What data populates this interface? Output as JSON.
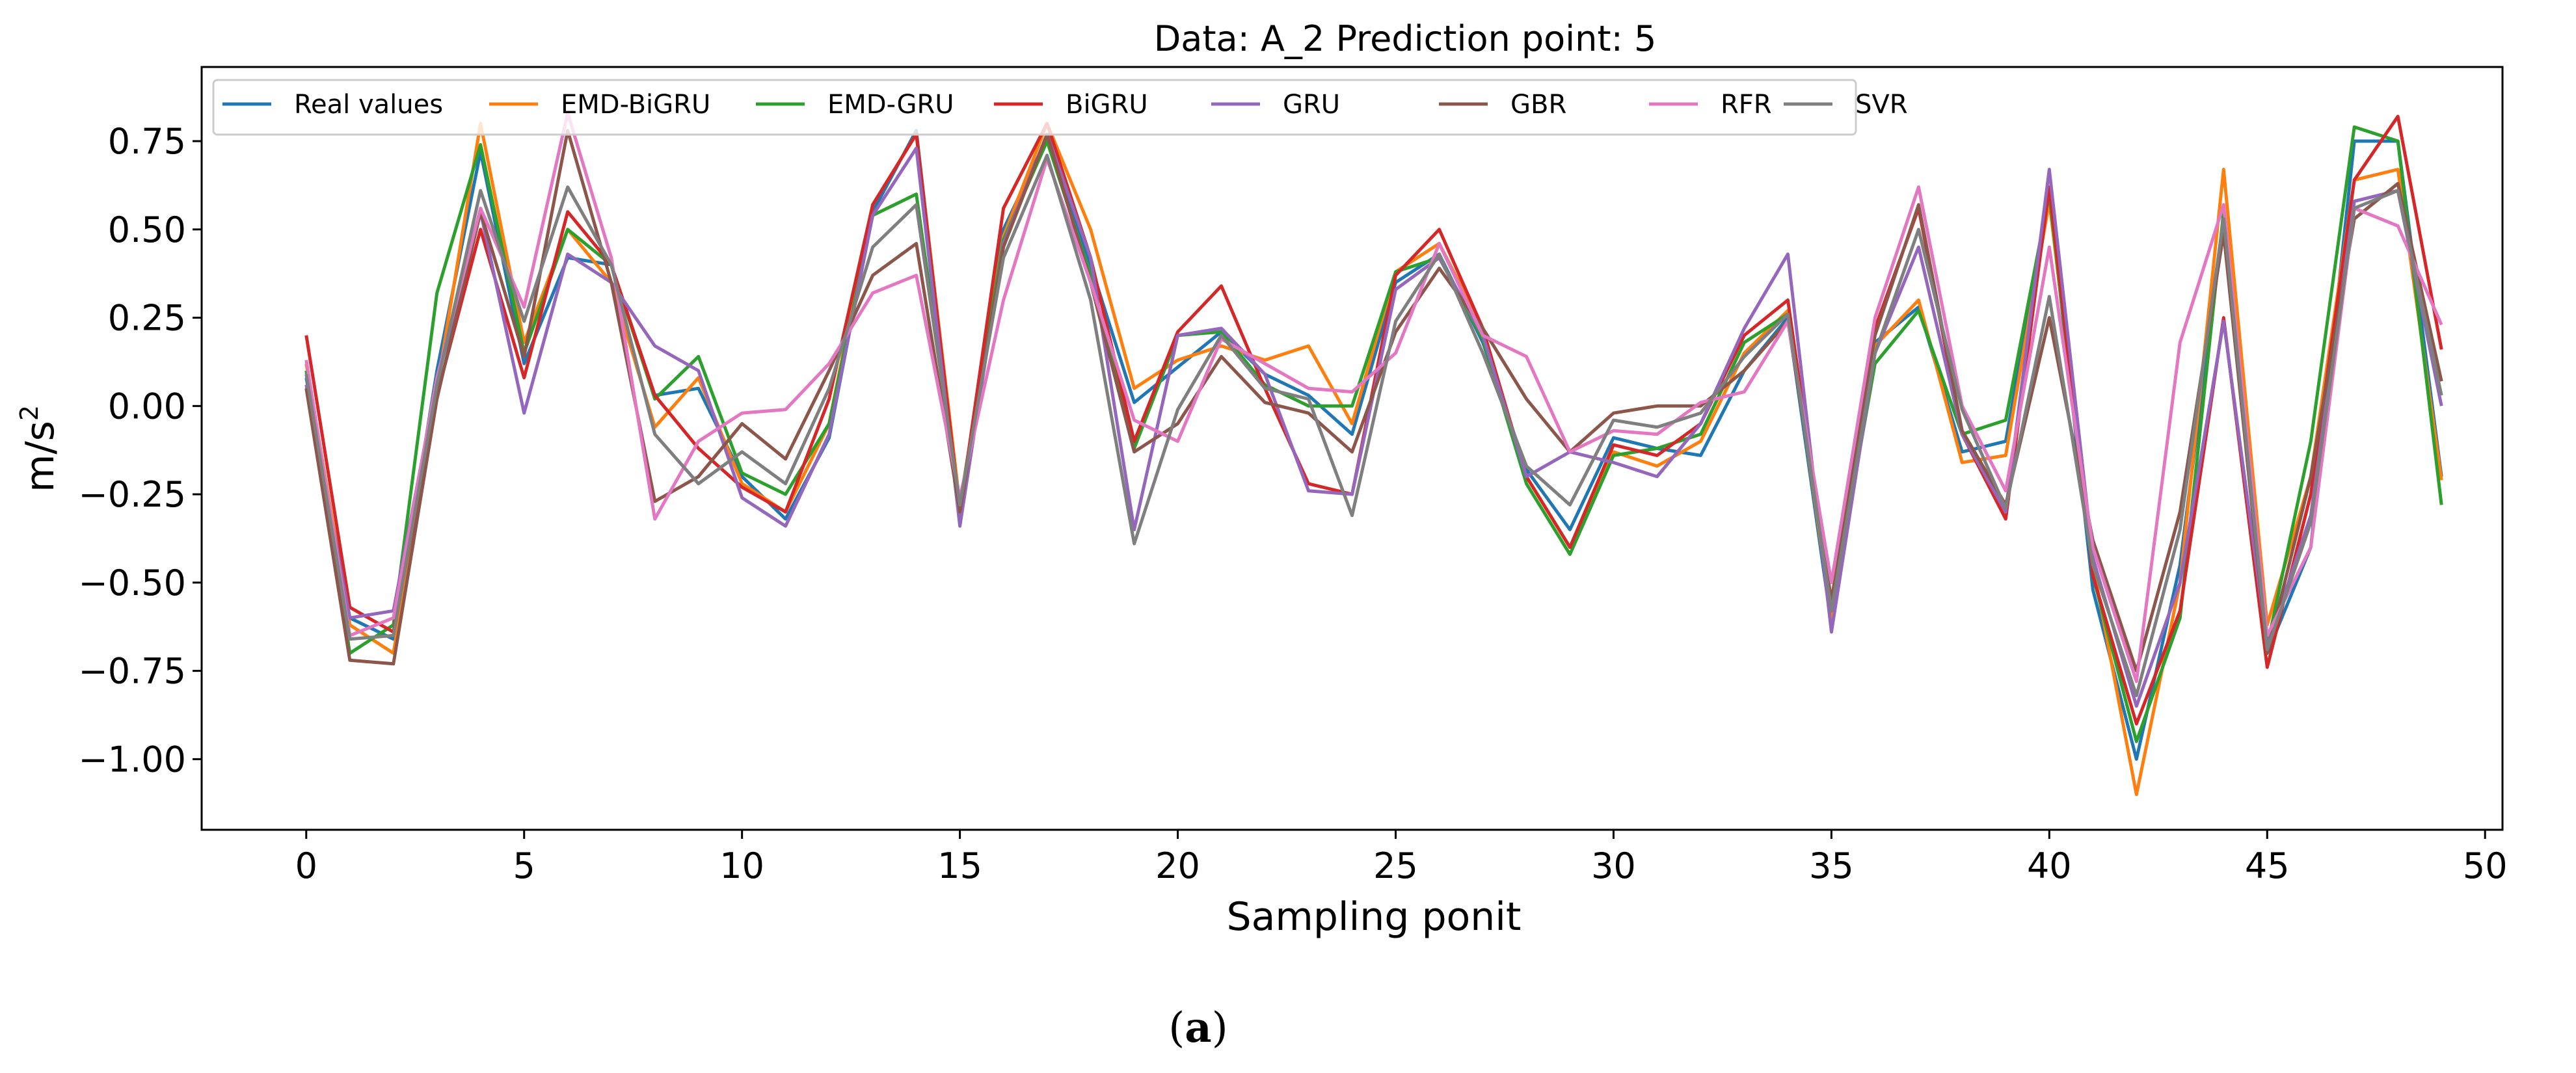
{
  "chart_data": {
    "type": "line",
    "title": "Data: A_2 Prediction point: 5",
    "xlabel": "Sampling ponit",
    "ylabel": "m/s",
    "ylabel_superscript": "2",
    "xlim": [
      -2.4,
      50.4
    ],
    "ylim": [
      -1.2,
      0.96
    ],
    "xticks": [
      0,
      5,
      10,
      15,
      20,
      25,
      30,
      35,
      40,
      45,
      50
    ],
    "yticks": [
      0.75,
      0.5,
      0.25,
      0.0,
      -0.25,
      -0.5,
      -0.75,
      -1.0
    ],
    "ytick_labels": [
      "0.75",
      "0.50",
      "0.25",
      "0.00",
      "−0.25",
      "−0.50",
      "−0.75",
      "−1.00"
    ],
    "legend_position": "top-left",
    "caption_open": "(",
    "caption_letter": "a",
    "caption_close": ")",
    "series": [
      {
        "name": "Real values",
        "color": "#1f77b4",
        "values": [
          0.08,
          -0.6,
          -0.66,
          0.1,
          0.72,
          0.12,
          0.42,
          0.4,
          0.03,
          0.05,
          -0.2,
          -0.32,
          -0.09,
          0.55,
          0.78,
          -0.3,
          0.5,
          0.76,
          0.4,
          0.01,
          0.11,
          0.21,
          0.09,
          0.03,
          -0.08,
          0.35,
          0.43,
          0.18,
          -0.18,
          -0.35,
          -0.09,
          -0.12,
          -0.14,
          0.1,
          0.25,
          -0.62,
          0.18,
          0.28,
          -0.13,
          -0.1,
          0.6,
          -0.52,
          -1.0,
          -0.45,
          0.52,
          -0.7,
          -0.4,
          0.75,
          0.75,
          -0.2
        ]
      },
      {
        "name": "EMD-BiGRU",
        "color": "#ff7f0e",
        "values": [
          0.12,
          -0.62,
          -0.7,
          0.05,
          0.8,
          0.18,
          0.5,
          0.35,
          -0.06,
          0.08,
          -0.22,
          -0.3,
          -0.05,
          0.57,
          0.77,
          -0.28,
          0.48,
          0.8,
          0.5,
          0.05,
          0.13,
          0.17,
          0.13,
          0.17,
          -0.05,
          0.38,
          0.46,
          0.22,
          -0.2,
          -0.4,
          -0.13,
          -0.17,
          -0.1,
          0.15,
          0.27,
          -0.6,
          0.17,
          0.3,
          -0.16,
          -0.14,
          0.58,
          -0.45,
          -1.1,
          -0.5,
          0.67,
          -0.62,
          -0.2,
          0.64,
          0.67,
          -0.21
        ]
      },
      {
        "name": "EMD-GRU",
        "color": "#2ca02c",
        "values": [
          0.1,
          -0.7,
          -0.62,
          0.32,
          0.74,
          0.15,
          0.5,
          0.4,
          0.02,
          0.14,
          -0.19,
          -0.25,
          -0.05,
          0.54,
          0.6,
          -0.28,
          0.47,
          0.75,
          0.37,
          -0.12,
          0.2,
          0.21,
          0.06,
          0.0,
          0.0,
          0.38,
          0.42,
          0.19,
          -0.22,
          -0.42,
          -0.14,
          -0.12,
          -0.08,
          0.18,
          0.26,
          -0.58,
          0.12,
          0.27,
          -0.08,
          -0.04,
          0.6,
          -0.48,
          -0.95,
          -0.6,
          0.55,
          -0.68,
          -0.1,
          0.79,
          0.75,
          -0.28
        ]
      },
      {
        "name": "BiGRU",
        "color": "#d62728",
        "values": [
          0.2,
          -0.57,
          -0.64,
          0.03,
          0.5,
          0.08,
          0.55,
          0.4,
          0.03,
          -0.12,
          -0.23,
          -0.3,
          0.02,
          0.57,
          0.77,
          -0.3,
          0.56,
          0.8,
          0.42,
          -0.1,
          0.21,
          0.34,
          0.05,
          -0.22,
          -0.25,
          0.37,
          0.5,
          0.22,
          -0.2,
          -0.4,
          -0.11,
          -0.14,
          -0.05,
          0.2,
          0.3,
          -0.57,
          0.22,
          0.56,
          -0.08,
          -0.32,
          0.62,
          -0.48,
          -0.9,
          -0.58,
          0.25,
          -0.74,
          -0.25,
          0.64,
          0.82,
          0.16
        ]
      },
      {
        "name": "GRU",
        "color": "#9467bd",
        "values": [
          0.06,
          -0.6,
          -0.58,
          0.07,
          0.55,
          -0.02,
          0.43,
          0.35,
          0.17,
          0.1,
          -0.26,
          -0.34,
          -0.08,
          0.54,
          0.73,
          -0.34,
          0.46,
          0.77,
          0.42,
          -0.35,
          0.2,
          0.22,
          0.09,
          -0.24,
          -0.25,
          0.33,
          0.42,
          0.2,
          -0.2,
          -0.13,
          -0.16,
          -0.2,
          -0.05,
          0.22,
          0.43,
          -0.64,
          0.15,
          0.45,
          -0.08,
          -0.3,
          0.67,
          -0.43,
          -0.85,
          -0.5,
          0.24,
          -0.68,
          -0.31,
          0.58,
          0.61,
          0.0
        ]
      },
      {
        "name": "GBR",
        "color": "#8c564b",
        "values": [
          0.05,
          -0.72,
          -0.73,
          0.02,
          0.55,
          0.14,
          0.78,
          0.35,
          -0.27,
          -0.2,
          -0.05,
          -0.15,
          0.1,
          0.37,
          0.46,
          -0.3,
          0.45,
          0.77,
          0.35,
          -0.13,
          -0.05,
          0.14,
          0.01,
          -0.02,
          -0.13,
          0.21,
          0.39,
          0.22,
          0.02,
          -0.13,
          -0.02,
          0.0,
          0.0,
          0.1,
          0.24,
          -0.55,
          0.2,
          0.57,
          -0.07,
          -0.28,
          0.25,
          -0.38,
          -0.75,
          -0.3,
          0.49,
          -0.7,
          -0.2,
          0.53,
          0.63,
          0.07
        ]
      },
      {
        "name": "RFR",
        "color": "#e377c2",
        "values": [
          0.13,
          -0.65,
          -0.6,
          0.08,
          0.56,
          0.28,
          0.83,
          0.42,
          -0.32,
          -0.1,
          -0.02,
          -0.01,
          0.12,
          0.32,
          0.37,
          -0.26,
          0.3,
          0.7,
          0.35,
          -0.04,
          -0.1,
          0.19,
          0.12,
          0.05,
          0.04,
          0.15,
          0.46,
          0.2,
          0.14,
          -0.13,
          -0.07,
          -0.08,
          0.01,
          0.04,
          0.24,
          -0.5,
          0.25,
          0.62,
          0.0,
          -0.24,
          0.45,
          -0.4,
          -0.78,
          0.18,
          0.57,
          -0.65,
          -0.4,
          0.56,
          0.51,
          0.23
        ]
      },
      {
        "name": "SVR",
        "color": "#7f7f7f",
        "values": [
          0.09,
          -0.66,
          -0.65,
          0.06,
          0.61,
          0.24,
          0.62,
          0.4,
          -0.08,
          -0.22,
          -0.13,
          -0.22,
          0.05,
          0.45,
          0.57,
          -0.28,
          0.42,
          0.71,
          0.3,
          -0.39,
          -0.01,
          0.2,
          0.05,
          0.02,
          -0.31,
          0.24,
          0.43,
          0.15,
          -0.17,
          -0.28,
          -0.04,
          -0.06,
          -0.02,
          0.14,
          0.26,
          -0.58,
          0.15,
          0.5,
          -0.01,
          -0.29,
          0.31,
          -0.45,
          -0.82,
          -0.35,
          0.53,
          -0.69,
          -0.33,
          0.56,
          0.61,
          0.03
        ]
      }
    ]
  }
}
